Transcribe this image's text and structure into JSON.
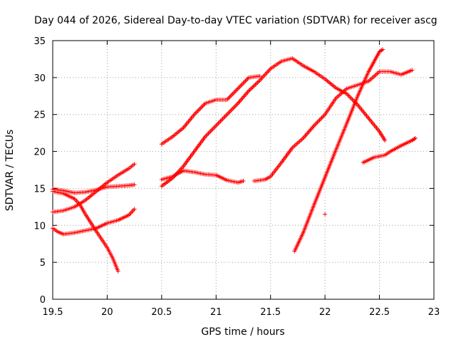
{
  "chart_data": {
    "type": "scatter",
    "title": "Day 044 of 2026, Sidereal Day-to-day VTEC variation (SDTVAR) for receiver ascg",
    "xlabel": "GPS time / hours",
    "ylabel": "SDTVAR / TECUs",
    "xlim": [
      19.5,
      23
    ],
    "ylim": [
      0,
      35
    ],
    "xticks": [
      "19.5",
      "20",
      "20.5",
      "21",
      "21.5",
      "22",
      "22.5",
      "23"
    ],
    "yticks": [
      "0",
      "5",
      "10",
      "15",
      "20",
      "25",
      "30",
      "35"
    ],
    "grid": true,
    "marker": "+",
    "color": "#ff0000",
    "series": [
      {
        "name": "s1",
        "x": [
          19.5,
          19.6,
          19.7,
          19.8,
          19.9,
          20.0,
          20.1,
          20.2,
          20.25
        ],
        "y": [
          11.8,
          12.0,
          12.5,
          13.4,
          14.6,
          15.8,
          16.8,
          17.7,
          18.3
        ]
      },
      {
        "name": "s2",
        "x": [
          19.5,
          19.6,
          19.7,
          19.8,
          19.9,
          20.0,
          20.1,
          20.2,
          20.25
        ],
        "y": [
          14.9,
          14.7,
          14.4,
          14.5,
          14.8,
          15.2,
          15.3,
          15.4,
          15.5
        ]
      },
      {
        "name": "s3",
        "x": [
          19.5,
          19.6,
          19.7,
          19.75,
          19.8,
          19.9,
          20.0,
          20.05,
          20.1
        ],
        "y": [
          14.6,
          14.3,
          13.6,
          12.8,
          11.5,
          9.2,
          7.0,
          5.6,
          3.8
        ]
      },
      {
        "name": "s4",
        "x": [
          19.5,
          19.55,
          19.6,
          19.7,
          19.8,
          19.9,
          20.0,
          20.1,
          20.2,
          20.25
        ],
        "y": [
          9.6,
          9.1,
          8.8,
          9.0,
          9.3,
          9.6,
          10.3,
          10.7,
          11.4,
          12.2
        ]
      },
      {
        "name": "s5",
        "x": [
          20.5,
          20.6,
          20.7,
          20.8,
          20.9,
          21.0,
          21.1,
          21.2,
          21.3,
          21.4
        ],
        "y": [
          21.0,
          22.0,
          23.2,
          25.0,
          26.5,
          27.0,
          27.0,
          28.5,
          30.0,
          30.2
        ]
      },
      {
        "name": "s6",
        "x": [
          20.5,
          20.6,
          20.7,
          20.8,
          20.9,
          21.0,
          21.1,
          21.2,
          21.3,
          21.4,
          21.5,
          21.6,
          21.7,
          21.8,
          21.9,
          22.0,
          22.1,
          22.2,
          22.3,
          22.4,
          22.5,
          22.55
        ],
        "y": [
          15.3,
          16.4,
          18.0,
          20.0,
          22.0,
          23.5,
          25.0,
          26.5,
          28.2,
          29.6,
          31.2,
          32.2,
          32.6,
          31.6,
          30.8,
          29.8,
          28.6,
          27.8,
          26.3,
          24.5,
          22.7,
          21.5
        ]
      },
      {
        "name": "s7",
        "x": [
          20.5,
          20.6,
          20.7,
          20.8,
          20.9,
          21.0,
          21.1,
          21.2,
          21.25
        ],
        "y": [
          16.2,
          16.6,
          17.4,
          17.2,
          16.9,
          16.8,
          16.1,
          15.8,
          16.0
        ]
      },
      {
        "name": "s8",
        "x": [
          21.35,
          21.45,
          21.5,
          21.6,
          21.7,
          21.8,
          21.9,
          22.0,
          22.1,
          22.2,
          22.3,
          22.4,
          22.5,
          22.6,
          22.7,
          22.8
        ],
        "y": [
          16.0,
          16.2,
          16.6,
          18.5,
          20.5,
          21.8,
          23.5,
          25.0,
          27.2,
          28.5,
          29.0,
          29.5,
          30.8,
          30.8,
          30.4,
          31.0
        ]
      },
      {
        "name": "s9",
        "x": [
          21.72,
          21.8,
          21.9,
          22.0,
          22.1,
          22.2,
          22.3,
          22.4,
          22.5,
          22.53
        ],
        "y": [
          6.5,
          9.0,
          12.8,
          16.5,
          20.2,
          23.8,
          27.5,
          30.8,
          33.5,
          33.8
        ]
      },
      {
        "name": "s10",
        "x": [
          22.0
        ],
        "y": [
          11.5
        ]
      },
      {
        "name": "s11",
        "x": [
          22.35,
          22.45,
          22.55,
          22.6,
          22.7,
          22.8,
          22.83
        ],
        "y": [
          18.5,
          19.2,
          19.5,
          20.0,
          20.8,
          21.5,
          21.8
        ]
      }
    ]
  }
}
